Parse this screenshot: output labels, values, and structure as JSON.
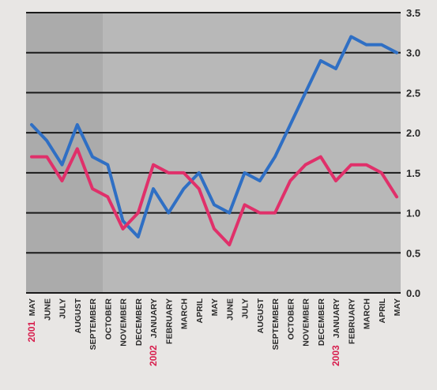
{
  "chart_data": {
    "type": "line",
    "title": "",
    "xlabel": "",
    "ylabel": "",
    "ylim": [
      0,
      3.5
    ],
    "yticks": [
      "0.0",
      "0.5",
      "1.0",
      "1.5",
      "2.0",
      "2.5",
      "3.0",
      "3.5"
    ],
    "grid": true,
    "legend": "none",
    "x": [
      "MAY",
      "JUNE",
      "JULY",
      "AUGUST",
      "SEPTEMBER",
      "OCTOBER",
      "NOVEMBER",
      "DECEMBER",
      "JANUARY",
      "FEBRUARY",
      "MARCH",
      "APRIL",
      "MAY",
      "JUNE",
      "JULY",
      "AUGUST",
      "SEPTEMBER",
      "OCTOBER",
      "NOVEMBER",
      "DECEMBER",
      "JANUARY",
      "FEBRUARY",
      "MARCH",
      "APRIL",
      "MAY"
    ],
    "year_markers": [
      {
        "index": 0,
        "label": "2001"
      },
      {
        "index": 8,
        "label": "2002"
      },
      {
        "index": 20,
        "label": "2003"
      }
    ],
    "series": [
      {
        "color": "#2f6fc4",
        "values": [
          2.1,
          1.9,
          1.6,
          2.1,
          1.7,
          1.6,
          0.9,
          0.7,
          1.3,
          1.0,
          1.3,
          1.5,
          1.1,
          1.0,
          1.5,
          1.4,
          1.7,
          2.1,
          2.5,
          2.9,
          2.8,
          3.2,
          3.1,
          3.1,
          3.0
        ]
      },
      {
        "color": "#e0306a",
        "values": [
          1.7,
          1.7,
          1.4,
          1.8,
          1.3,
          1.2,
          0.8,
          1.0,
          1.6,
          1.5,
          1.5,
          1.3,
          0.8,
          0.6,
          1.1,
          1.0,
          1.0,
          1.4,
          1.6,
          1.7,
          1.4,
          1.6,
          1.6,
          1.5,
          1.2
        ]
      }
    ],
    "plot_bg": "#ababab",
    "plot_bg_right": "#b8b8b8",
    "grid_color": "#1a1a1a"
  }
}
